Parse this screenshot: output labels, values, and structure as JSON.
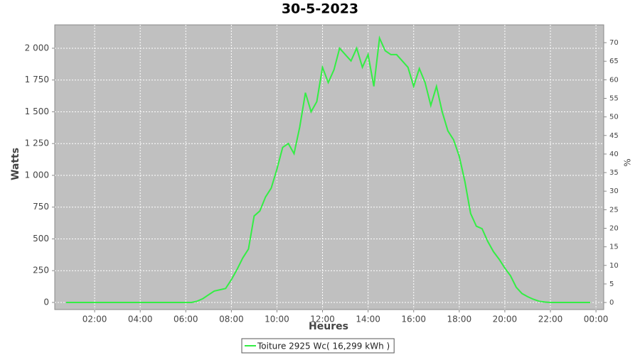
{
  "chart_data": {
    "type": "line",
    "title": "30-5-2023",
    "x_label": "Heures",
    "y_label": "Watts",
    "y2_label": "%",
    "x": [
      0.75,
      1.25,
      1.75,
      2.25,
      2.75,
      3.25,
      3.75,
      4.25,
      4.75,
      5.25,
      5.75,
      6.25,
      6.5,
      6.75,
      7.0,
      7.25,
      7.5,
      7.75,
      8.0,
      8.25,
      8.5,
      8.75,
      9.0,
      9.25,
      9.5,
      9.75,
      10.0,
      10.25,
      10.5,
      10.75,
      11.0,
      11.25,
      11.5,
      11.75,
      12.0,
      12.25,
      12.5,
      12.75,
      13.0,
      13.25,
      13.5,
      13.75,
      14.0,
      14.25,
      14.5,
      14.75,
      15.0,
      15.25,
      15.5,
      15.75,
      16.0,
      16.25,
      16.5,
      16.75,
      17.0,
      17.25,
      17.5,
      17.75,
      18.0,
      18.25,
      18.5,
      18.75,
      19.0,
      19.25,
      19.5,
      19.75,
      20.0,
      20.25,
      20.5,
      20.75,
      21.0,
      21.25,
      21.5,
      21.75,
      22.0,
      22.5,
      23.0,
      23.5,
      23.75
    ],
    "series": [
      {
        "name": "Toiture 2925 Wc( 16,299 kWh )",
        "color": "#33ee44",
        "values": [
          0,
          0,
          0,
          0,
          0,
          0,
          0,
          0,
          0,
          0,
          0,
          0,
          10,
          30,
          60,
          90,
          100,
          110,
          180,
          260,
          350,
          420,
          680,
          720,
          830,
          900,
          1050,
          1220,
          1250,
          1170,
          1380,
          1650,
          1500,
          1580,
          1850,
          1730,
          1830,
          2000,
          1950,
          1900,
          2000,
          1850,
          1950,
          1700,
          2080,
          1980,
          1950,
          1950,
          1900,
          1850,
          1700,
          1840,
          1730,
          1550,
          1700,
          1500,
          1350,
          1280,
          1150,
          950,
          700,
          600,
          580,
          480,
          400,
          340,
          270,
          210,
          120,
          70,
          45,
          25,
          10,
          3,
          0,
          0,
          0,
          0,
          0
        ]
      }
    ],
    "xlim": [
      0.25,
      24.34
    ],
    "xticks": [
      {
        "value": 2,
        "label": "02:00"
      },
      {
        "value": 4,
        "label": "04:00"
      },
      {
        "value": 6,
        "label": "06:00"
      },
      {
        "value": 8,
        "label": "08:00"
      },
      {
        "value": 10,
        "label": "10:00"
      },
      {
        "value": 12,
        "label": "12:00"
      },
      {
        "value": 14,
        "label": "14:00"
      },
      {
        "value": 16,
        "label": "16:00"
      },
      {
        "value": 18,
        "label": "18:00"
      },
      {
        "value": 20,
        "label": "20:00"
      },
      {
        "value": 22,
        "label": "22:00"
      },
      {
        "value": 24,
        "label": "00:00"
      }
    ],
    "ylim": [
      -56,
      2184
    ],
    "yticks": [
      0,
      250,
      500,
      750,
      {
        "value": 1000,
        "label": "1 000"
      },
      {
        "value": 1250,
        "label": "1 250"
      },
      {
        "value": 1500,
        "label": "1 500"
      },
      {
        "value": 1750,
        "label": "1 750"
      },
      {
        "value": 2000,
        "label": "2 000"
      }
    ],
    "y2lim": [
      -1.9,
      74.8
    ],
    "y2ticks": [
      0,
      5,
      10,
      15,
      20,
      25,
      30,
      35,
      40,
      45,
      50,
      55,
      60,
      65,
      70
    ],
    "grid": true,
    "legend": "bottom"
  }
}
